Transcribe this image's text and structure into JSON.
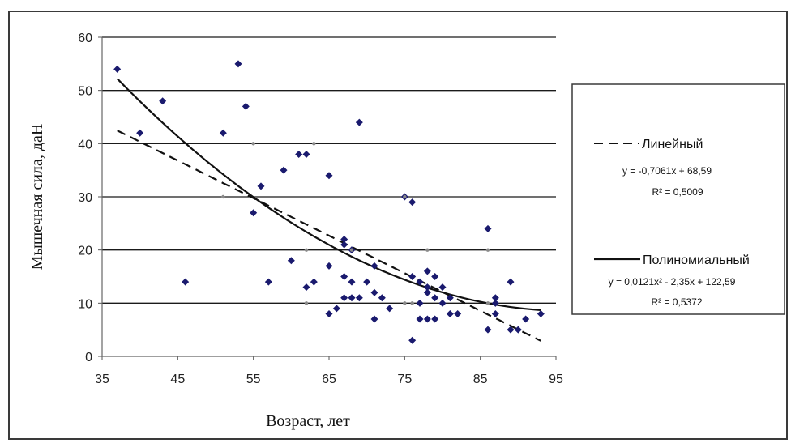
{
  "chart_data": {
    "type": "scatter",
    "title": "",
    "xlabel": "Возраст, лет",
    "ylabel": "Мышечная сила, даН",
    "xlim": [
      35,
      95
    ],
    "ylim": [
      0,
      60
    ],
    "x_ticks": [
      "35",
      "45",
      "55",
      "65",
      "75",
      "85",
      "95"
    ],
    "y_ticks": [
      "0",
      "10",
      "20",
      "30",
      "40",
      "50",
      "60"
    ],
    "grid": "horizontal",
    "legend_position": "right",
    "marker_color": "#1a1a6e",
    "series": [
      {
        "name": "",
        "type": "scatter",
        "points": [
          [
            37,
            54
          ],
          [
            40,
            42
          ],
          [
            43,
            48
          ],
          [
            46,
            14
          ],
          [
            51,
            42
          ],
          [
            53,
            55
          ],
          [
            54,
            47
          ],
          [
            55,
            27
          ],
          [
            56,
            32
          ],
          [
            57,
            14
          ],
          [
            59,
            35
          ],
          [
            60,
            18
          ],
          [
            61,
            38
          ],
          [
            62,
            38
          ],
          [
            62,
            13
          ],
          [
            63,
            14
          ],
          [
            65,
            34
          ],
          [
            65,
            17
          ],
          [
            65,
            8
          ],
          [
            66,
            9
          ],
          [
            67,
            22
          ],
          [
            67,
            21
          ],
          [
            67,
            15
          ],
          [
            67,
            11
          ],
          [
            68,
            20
          ],
          [
            68,
            14
          ],
          [
            68,
            11
          ],
          [
            69,
            44
          ],
          [
            69,
            11
          ],
          [
            70,
            14
          ],
          [
            71,
            17
          ],
          [
            71,
            12
          ],
          [
            71,
            7
          ],
          [
            72,
            11
          ],
          [
            73,
            9
          ],
          [
            75,
            30
          ],
          [
            76,
            29
          ],
          [
            76,
            3
          ],
          [
            76,
            15
          ],
          [
            77,
            14
          ],
          [
            77,
            10
          ],
          [
            77,
            7
          ],
          [
            78,
            16
          ],
          [
            78,
            13
          ],
          [
            78,
            12
          ],
          [
            78,
            7
          ],
          [
            79,
            15
          ],
          [
            79,
            11
          ],
          [
            79,
            7
          ],
          [
            80,
            13
          ],
          [
            80,
            10
          ],
          [
            81,
            11
          ],
          [
            81,
            8
          ],
          [
            82,
            8
          ],
          [
            86,
            24
          ],
          [
            86,
            5
          ],
          [
            87,
            11
          ],
          [
            87,
            10
          ],
          [
            87,
            8
          ],
          [
            89,
            5
          ],
          [
            89,
            14
          ],
          [
            90,
            5
          ],
          [
            91,
            7
          ],
          [
            93,
            8
          ]
        ]
      },
      {
        "name": "",
        "type": "scatter",
        "points": [
          [
            51,
            30
          ],
          [
            55,
            40
          ],
          [
            62,
            20
          ],
          [
            62,
            10
          ],
          [
            63,
            40
          ],
          [
            68,
            20
          ],
          [
            75,
            30
          ],
          [
            75,
            10
          ],
          [
            78,
            20
          ],
          [
            86,
            20
          ],
          [
            86,
            10
          ],
          [
            76,
            10
          ]
        ]
      }
    ],
    "trendlines": [
      {
        "name": "Линейный",
        "style": "dashed",
        "equation": "y = -0,7061x + 68,59",
        "r2": "R² = 0,5009",
        "slope": -0.7061,
        "intercept": 68.59,
        "x_range": [
          37,
          93
        ]
      },
      {
        "name": "Полиномиальный",
        "style": "solid",
        "equation": "y = 0,0121x² - 2,35x + 122,59",
        "r2": "R² = 0,5372",
        "coefficients": [
          0.0121,
          -2.35,
          122.59
        ],
        "x_range": [
          37,
          93
        ]
      }
    ]
  }
}
